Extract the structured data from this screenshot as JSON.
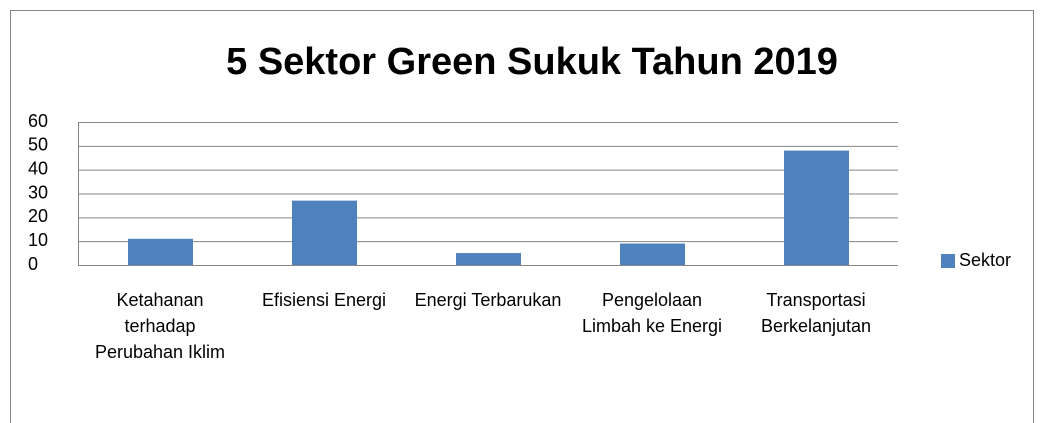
{
  "chart_data": {
    "type": "bar",
    "title": "5 Sektor Green Sukuk Tahun 2019",
    "categories": [
      "Ketahanan terhadap Perubahan Iklim",
      "Efisiensi Energi",
      "Energi Terbarukan",
      "Pengelolaan Limbah ke Energi",
      "Transportasi Berkelanjutan"
    ],
    "series": [
      {
        "name": "Sektor",
        "color": "#4f81bd",
        "values": [
          11,
          27,
          5,
          9,
          48
        ]
      }
    ],
    "ylim": [
      0,
      60
    ],
    "yticks": [
      0,
      10,
      20,
      30,
      40,
      50,
      60
    ],
    "grid": true,
    "legend": "right"
  }
}
